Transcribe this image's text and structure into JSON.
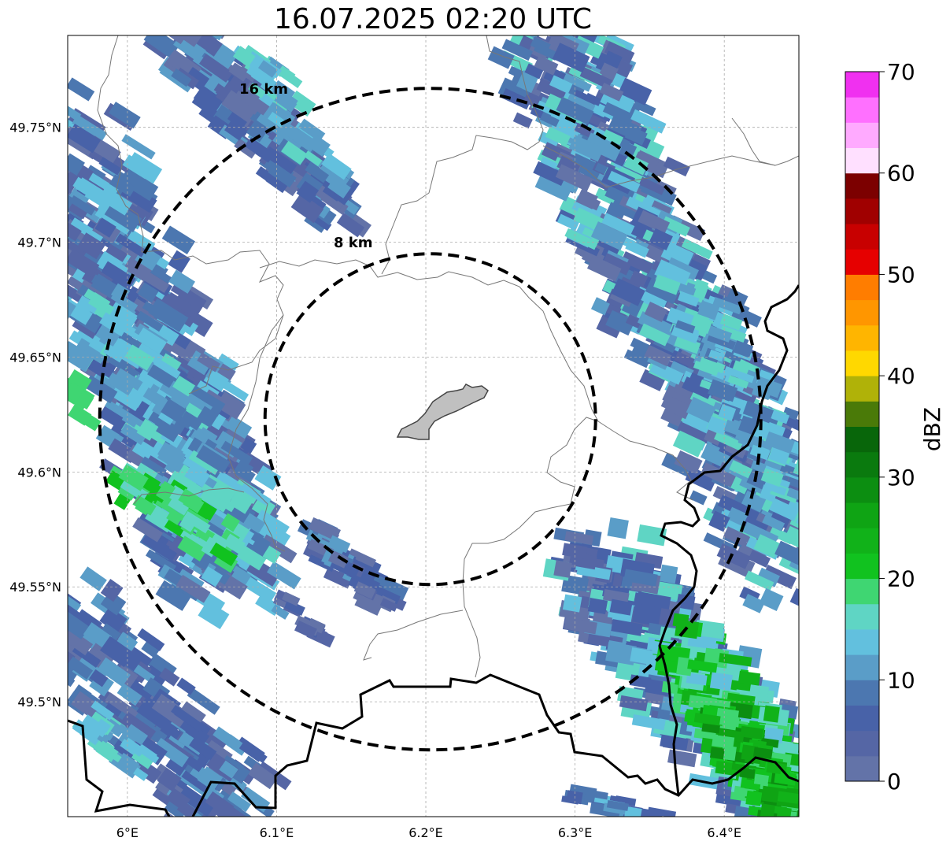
{
  "title": "16.07.2025 02:20 UTC",
  "map": {
    "lon_range": [
      5.96,
      6.45
    ],
    "lat_range": [
      49.45,
      49.79
    ],
    "lon_ticks": [
      {
        "value": 6.0,
        "label": "6°E"
      },
      {
        "value": 6.1,
        "label": "6.1°E"
      },
      {
        "value": 6.2,
        "label": "6.2°E"
      },
      {
        "value": 6.3,
        "label": "6.3°E"
      },
      {
        "value": 6.4,
        "label": "6.4°E"
      }
    ],
    "lat_ticks": [
      {
        "value": 49.75,
        "label": "49.75°N"
      },
      {
        "value": 49.7,
        "label": "49.7°N"
      },
      {
        "value": 49.65,
        "label": "49.65°N"
      },
      {
        "value": 49.6,
        "label": "49.6°N"
      },
      {
        "value": 49.55,
        "label": "49.55°N"
      },
      {
        "value": 49.5,
        "label": "49.5°N"
      }
    ],
    "grid": true,
    "center": {
      "lon": 6.203,
      "lat": 49.623
    },
    "range_rings": [
      {
        "label": "8 km",
        "label_lon": 6.157,
        "label_lat": 49.699
      },
      {
        "label": "16 km",
        "label_lon": 6.093,
        "label_lat": 49.766
      }
    ]
  },
  "colorbar": {
    "label": "dBZ",
    "min": 0,
    "max": 70,
    "ticks": [
      0,
      10,
      20,
      30,
      40,
      50,
      60,
      70
    ],
    "colors": [
      "#6373a8",
      "#5566a5",
      "#4862a8",
      "#4c77b0",
      "#5a9dc8",
      "#62c0de",
      "#5fd5c4",
      "#3fd672",
      "#11c21f",
      "#11b219",
      "#0fa414",
      "#0c8e11",
      "#0a7a0e",
      "#08660a",
      "#4a7a08",
      "#b0b208",
      "#ffd800",
      "#ffb500",
      "#ff9600",
      "#ff7d00",
      "#e60000",
      "#c80000",
      "#a00000",
      "#7c0000",
      "#ffe0ff",
      "#ffaaff",
      "#ff70ff",
      "#f030f0"
    ]
  }
}
